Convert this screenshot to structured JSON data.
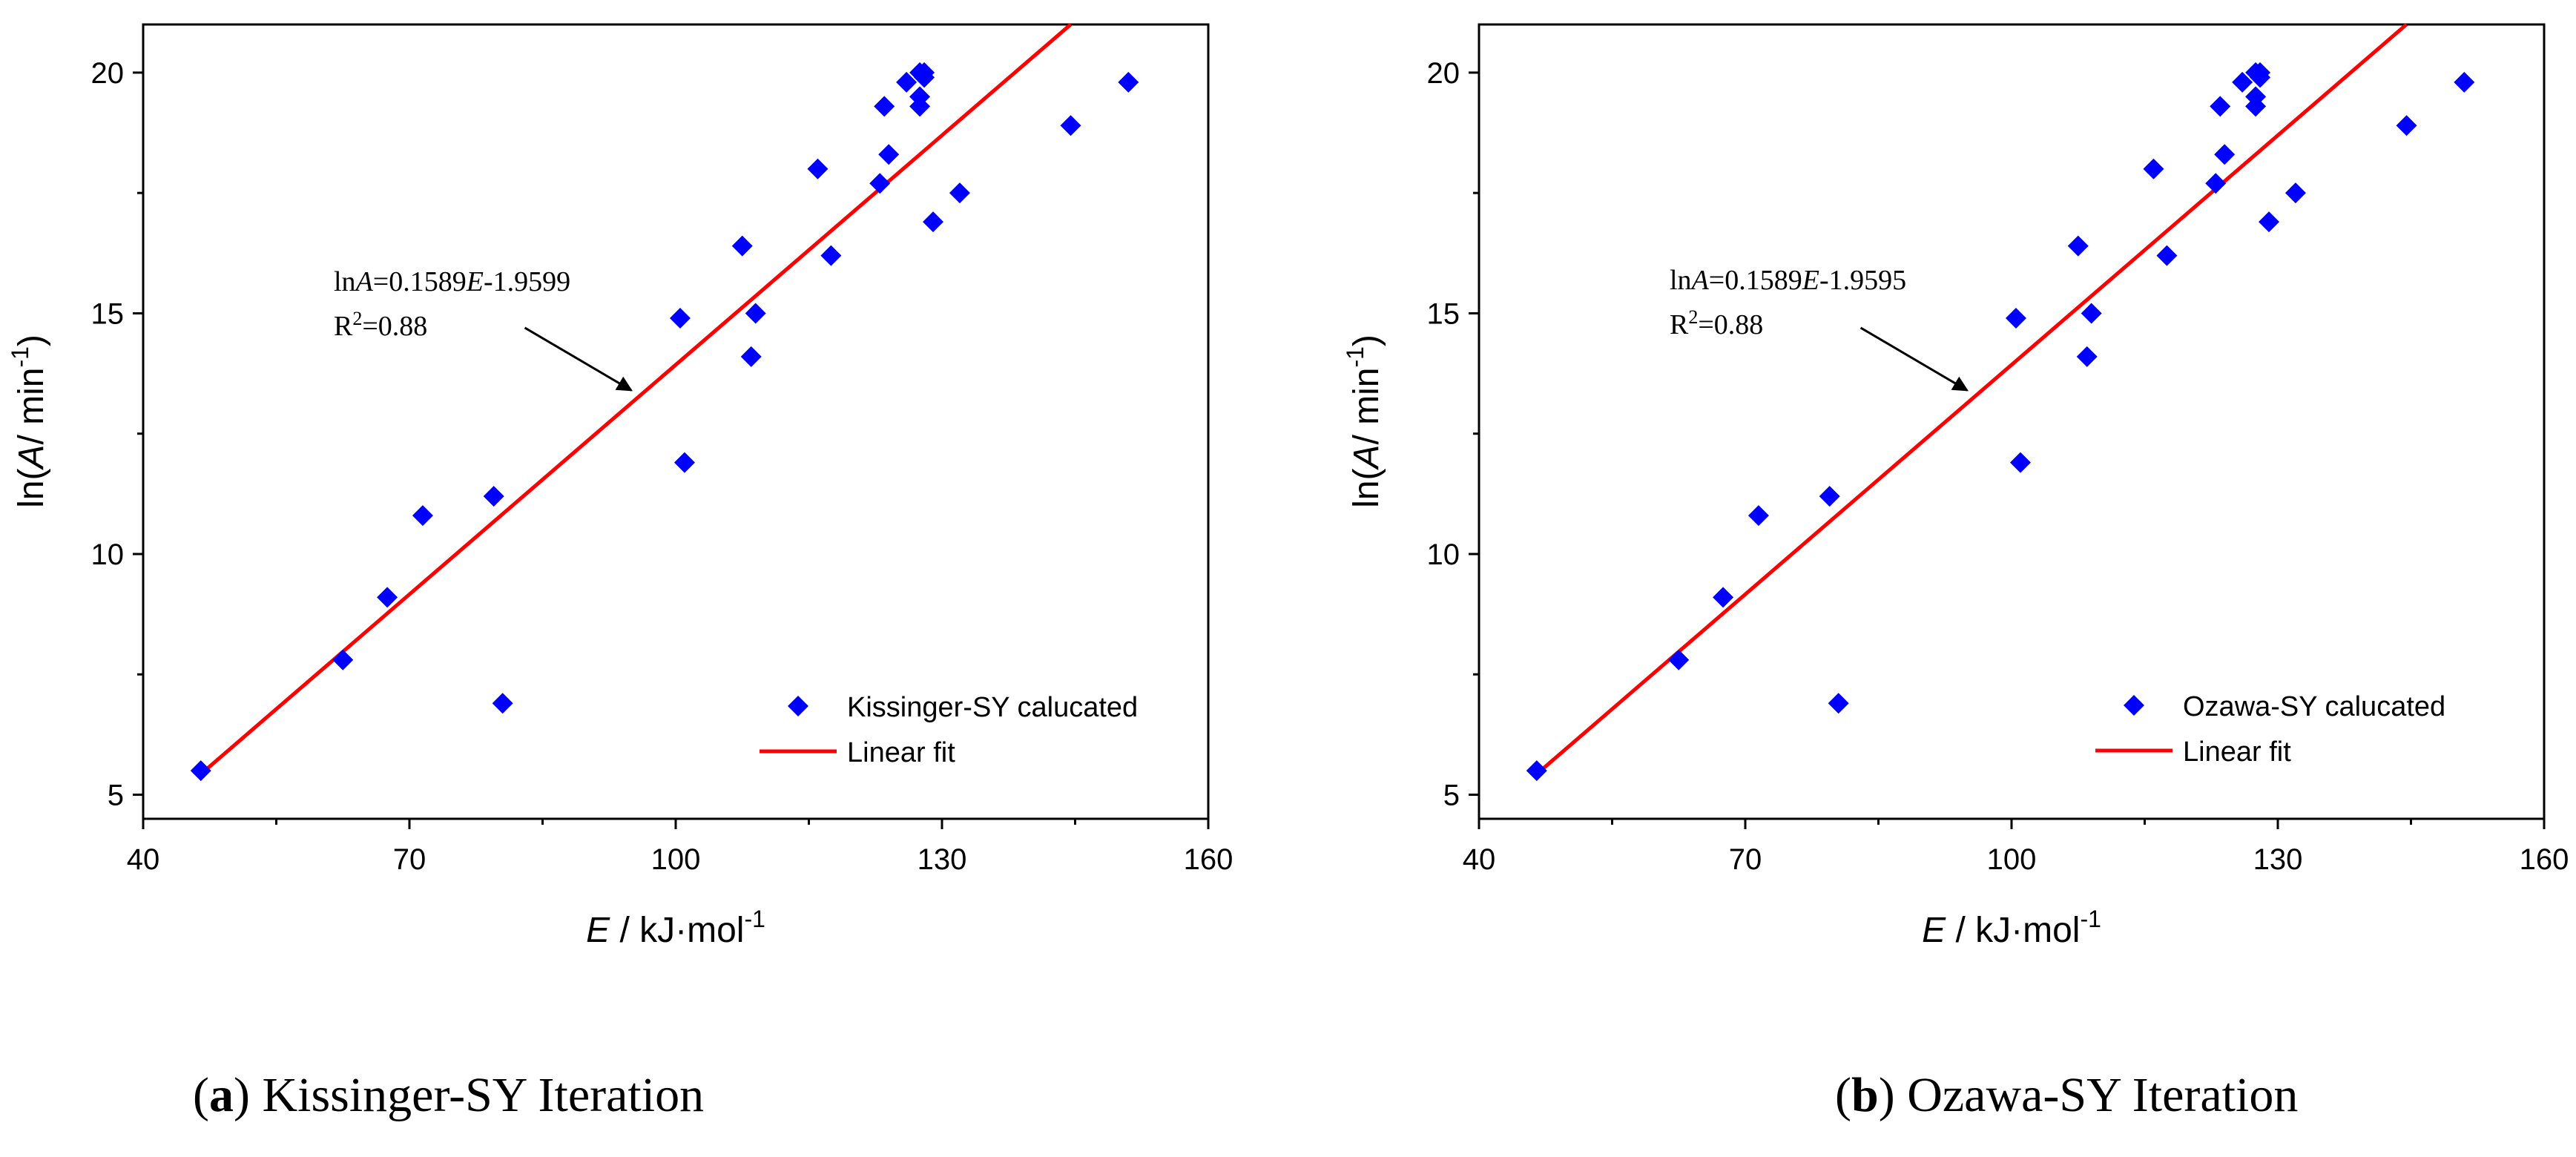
{
  "colors": {
    "marker": "#0000ff",
    "fit_line": "#ff0000",
    "axis": "#000000"
  },
  "chart_data": [
    {
      "type": "scatter",
      "panel": "a",
      "caption_letter": "a",
      "caption_text": "Kissinger-SY Iteration",
      "xlabel_var": "E",
      "xlabel_rest": " / kJ·mol",
      "xlabel_sup": "-1",
      "ylabel_pre": "ln(",
      "ylabel_var": "A",
      "ylabel_rest": "/ min",
      "ylabel_sup": "-1",
      "ylabel_close": ")",
      "xlim": [
        40,
        160
      ],
      "ylim": [
        4.5,
        21
      ],
      "xticks": [
        40,
        70,
        100,
        130,
        160
      ],
      "yticks": [
        5,
        10,
        15,
        20
      ],
      "legend_position": "bottom-right",
      "series": [
        {
          "name": "Kissinger-SY calucated",
          "marker": "diamond",
          "x": [
            46.5,
            62.5,
            67.5,
            71.5,
            79.5,
            80.5,
            100.5,
            101.0,
            107.5,
            108.5,
            109.0,
            116.0,
            117.5,
            123.0,
            123.5,
            124.0,
            126.0,
            127.5,
            127.5,
            127.5,
            128.0,
            128.0,
            129.0,
            132.0,
            144.5,
            151.0
          ],
          "y": [
            5.5,
            7.8,
            9.1,
            10.8,
            11.2,
            6.9,
            14.9,
            11.9,
            16.4,
            14.1,
            15.0,
            18.0,
            16.2,
            17.7,
            19.3,
            18.3,
            19.8,
            19.3,
            19.5,
            20.0,
            20.0,
            19.9,
            16.9,
            17.5,
            18.9,
            19.8
          ]
        },
        {
          "name": "Linear fit",
          "type": "line",
          "slope": 0.1589,
          "intercept": -1.9599,
          "x_range": [
            46.5,
            144.5
          ]
        }
      ],
      "annotation": {
        "eq_pre": "ln",
        "eq_var_a": "A",
        "eq_mid": "=0.1589",
        "eq_var_e": "E",
        "eq_post": "-1.9599",
        "r2_pre": "R",
        "r2_sup": "2",
        "r2_post": "=0.88",
        "arrow_from": [
          83.0,
          14.7
        ],
        "arrow_to": [
          95.0,
          13.4
        ]
      }
    },
    {
      "type": "scatter",
      "panel": "b",
      "caption_letter": "b",
      "caption_text": "Ozawa-SY Iteration",
      "xlabel_var": "E",
      "xlabel_rest": " / kJ·mol",
      "xlabel_sup": "-1",
      "ylabel_pre": "ln(",
      "ylabel_var": "A",
      "ylabel_rest": "/ min",
      "ylabel_sup": "-1",
      "ylabel_close": ")",
      "xlim": [
        40,
        160
      ],
      "ylim": [
        4.5,
        21
      ],
      "xticks": [
        40,
        70,
        100,
        130,
        160
      ],
      "yticks": [
        5,
        10,
        15,
        20
      ],
      "legend_position": "bottom-right",
      "series": [
        {
          "name": "Ozawa-SY calucated",
          "marker": "diamond",
          "x": [
            46.5,
            62.5,
            67.5,
            71.5,
            79.5,
            80.5,
            100.5,
            101.0,
            107.5,
            108.5,
            109.0,
            116.0,
            117.5,
            123.0,
            123.5,
            124.0,
            126.0,
            127.5,
            127.5,
            127.5,
            128.0,
            128.0,
            129.0,
            132.0,
            144.5,
            151.0
          ],
          "y": [
            5.5,
            7.8,
            9.1,
            10.8,
            11.2,
            6.9,
            14.9,
            11.9,
            16.4,
            14.1,
            15.0,
            18.0,
            16.2,
            17.7,
            19.3,
            18.3,
            19.8,
            19.3,
            19.5,
            20.0,
            20.0,
            19.9,
            16.9,
            17.5,
            18.9,
            19.8
          ]
        },
        {
          "name": "Linear fit",
          "type": "line",
          "slope": 0.1589,
          "intercept": -1.9595,
          "x_range": [
            46.5,
            144.5
          ]
        }
      ],
      "annotation": {
        "eq_pre": "ln",
        "eq_var_a": "A",
        "eq_mid": "=0.1589",
        "eq_var_e": "E",
        "eq_post": "-1.9595",
        "r2_pre": "R",
        "r2_sup": "2",
        "r2_post": "=0.88",
        "arrow_from": [
          83.0,
          14.7
        ],
        "arrow_to": [
          95.0,
          13.4
        ]
      }
    }
  ]
}
